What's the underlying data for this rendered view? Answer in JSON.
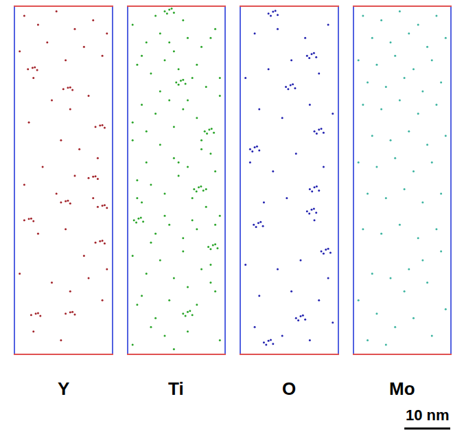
{
  "chart_data": [
    {
      "type": "scatter",
      "title": "Y",
      "color": "#a3242b",
      "xlim": [
        0,
        21
      ],
      "ylim": [
        0,
        78
      ],
      "tick_labels": false,
      "x": [
        2,
        5,
        9,
        13,
        17,
        20,
        1,
        7,
        11,
        15,
        19,
        4,
        8,
        12,
        16,
        3,
        10,
        14,
        18,
        6,
        2,
        9,
        13,
        17,
        5,
        11,
        15,
        20,
        1,
        8,
        12,
        16,
        19,
        4,
        10,
        2.8,
        3.8,
        4.8,
        4.3,
        10.5,
        11.5,
        12.5,
        12,
        17.5,
        18.5,
        19.5,
        19,
        16,
        17,
        18,
        17.5,
        2,
        3,
        4,
        3.5,
        18,
        19,
        20,
        19.5,
        17.5,
        18.5,
        19.5,
        19,
        10,
        11,
        12,
        11.5,
        3.5,
        4.5,
        5.5,
        5,
        11,
        12,
        13,
        12.5
      ],
      "y": [
        76,
        74,
        77,
        73,
        75,
        72,
        68,
        70,
        66,
        69,
        67,
        62,
        57,
        55,
        58,
        52,
        48,
        46,
        44,
        42,
        38,
        36,
        40,
        35,
        27,
        28,
        22,
        19,
        18,
        16,
        14,
        17,
        12,
        5,
        3,
        64,
        64.3,
        63.8,
        64.4,
        59.5,
        59.8,
        59.3,
        59.9,
        51,
        51.3,
        50.8,
        51.4,
        39.5,
        39.8,
        39.3,
        39.9,
        30,
        30.3,
        29.8,
        30.4,
        33,
        33.3,
        32.8,
        33.4,
        25,
        25.3,
        24.8,
        25.4,
        34,
        34.3,
        33.8,
        34.4,
        8.7,
        9,
        8.5,
        9.1,
        9,
        9.3,
        8.8,
        9.4
      ]
    },
    {
      "type": "scatter",
      "title": "Ti",
      "color": "#2aa52a",
      "xlim": [
        0,
        21
      ],
      "ylim": [
        0,
        78
      ],
      "tick_labels": false,
      "x": [
        1,
        4,
        7,
        10,
        13,
        16,
        19,
        2,
        5,
        8,
        11,
        14,
        17,
        20,
        3,
        6,
        9,
        12,
        15,
        18,
        1,
        4,
        7,
        10,
        13,
        16,
        19,
        2,
        5,
        8,
        11,
        14,
        17,
        20,
        3,
        6,
        9,
        12,
        15,
        18,
        1,
        4,
        7,
        10,
        13,
        16,
        19,
        2,
        5,
        8,
        6,
        12,
        18,
        3,
        9,
        15,
        20,
        7,
        13,
        1,
        10,
        16,
        4,
        11,
        17,
        2,
        8,
        14,
        19,
        5,
        12,
        18,
        3,
        9,
        15,
        6,
        13,
        20,
        1,
        10,
        10.5,
        11.5,
        12.5,
        11,
        12,
        16.7,
        17.7,
        18.7,
        17.2,
        18.2,
        14.4,
        15.4,
        16.4,
        14.9,
        15.9,
        1.3,
        2.3,
        3.3,
        1.8,
        2.8,
        17.5,
        18.5,
        19.5,
        18,
        19,
        12,
        13,
        14,
        12.5,
        13.5,
        8,
        9,
        10,
        8.5,
        9.5
      ],
      "y": [
        74,
        70,
        72,
        68,
        71,
        69,
        73,
        65,
        63,
        66,
        64,
        62,
        60,
        58,
        56,
        54,
        57,
        55,
        53,
        45,
        48,
        50,
        47,
        44,
        42,
        46,
        41,
        39,
        38,
        36,
        40,
        35,
        33,
        31,
        34,
        27,
        29,
        26,
        28,
        20,
        22,
        18,
        21,
        17,
        15,
        19,
        14,
        11,
        6,
        4,
        76,
        75,
        71,
        67,
        70,
        65,
        62,
        59,
        57,
        52,
        51,
        48,
        43,
        43,
        37,
        35,
        31,
        30,
        29,
        25,
        23,
        16,
        13,
        12,
        11,
        8,
        5,
        3,
        2,
        1,
        61,
        61.4,
        60.7,
        60.5,
        61.6,
        50,
        50.4,
        49.7,
        49.5,
        50.6,
        37,
        37.4,
        36.7,
        36.5,
        37.6,
        30,
        30.4,
        29.7,
        29.5,
        30.6,
        24,
        24.4,
        23.7,
        23.5,
        24.6,
        9,
        9.4,
        8.7,
        8.5,
        9.6,
        77,
        77.4,
        76.7,
        76.5,
        77.6
      ]
    },
    {
      "type": "scatter",
      "title": "O",
      "color": "#2323b0",
      "xlim": [
        0,
        21
      ],
      "ylim": [
        0,
        78
      ],
      "tick_labels": false,
      "x": [
        3,
        8,
        14,
        19,
        1,
        6,
        11,
        17,
        4,
        9,
        15,
        20,
        2,
        7,
        12,
        18,
        5,
        10,
        16,
        1,
        8,
        13,
        19,
        4,
        11,
        17,
        3,
        9,
        15,
        20,
        6,
        7,
        8,
        6.5,
        7.5,
        14.4,
        15.4,
        16.4,
        14.9,
        15.9,
        9.8,
        10.8,
        11.8,
        10.3,
        11.3,
        16,
        17,
        18,
        16.5,
        17.5,
        2,
        3,
        4,
        2.5,
        3.5,
        15,
        16,
        17,
        15.5,
        16.5,
        2.8,
        3.8,
        4.8,
        3.3,
        4.3,
        14.4,
        15.4,
        16.4,
        14.9,
        15.9,
        17.5,
        18.5,
        19.5,
        18,
        19,
        12,
        13,
        14,
        12.5,
        13.5,
        5,
        6,
        7,
        5.5,
        6.5
      ],
      "y": [
        72,
        73,
        71,
        74,
        62,
        64,
        66,
        63,
        55,
        53,
        56,
        54,
        43,
        41,
        45,
        42,
        34,
        35,
        30,
        20,
        19,
        21,
        17,
        13,
        14,
        12,
        6,
        4,
        3,
        7,
        76.5,
        76.9,
        76.2,
        76,
        77.1,
        67,
        67.4,
        66.7,
        66.5,
        67.6,
        60,
        60.4,
        59.7,
        59.5,
        60.6,
        50,
        50.4,
        49.7,
        49.5,
        50.6,
        46,
        46.4,
        45.7,
        45.5,
        46.6,
        37,
        37.4,
        36.7,
        36.5,
        37.6,
        29,
        29.4,
        28.7,
        28.5,
        29.6,
        32,
        32.4,
        31.7,
        31.5,
        32.6,
        23,
        23.4,
        22.7,
        22.5,
        23.6,
        8,
        8.4,
        7.7,
        7.5,
        8.6,
        2.5,
        2.9,
        2.2,
        2,
        3.1
      ]
    },
    {
      "type": "scatter",
      "title": "Mo",
      "color": "#3cb4a0",
      "xlim": [
        0,
        21
      ],
      "ylim": [
        0,
        78
      ],
      "tick_labels": false,
      "x": [
        2,
        6,
        10,
        14,
        18,
        4,
        8,
        12,
        16,
        20,
        1,
        5,
        9,
        13,
        17,
        3,
        7,
        11,
        15,
        19,
        2,
        6,
        10,
        14,
        18,
        4,
        8,
        12,
        16,
        20,
        1,
        5,
        9,
        13,
        17,
        3,
        7,
        11,
        15,
        19,
        2,
        6,
        10,
        14,
        18,
        4,
        8,
        12,
        16,
        20,
        1,
        5,
        9,
        13,
        17,
        3,
        7,
        11,
        15,
        19
      ],
      "y": [
        76,
        75,
        77,
        74,
        76,
        71,
        70,
        72,
        69,
        71,
        66,
        65,
        67,
        64,
        66,
        61,
        60,
        62,
        59,
        61,
        56,
        55,
        57,
        54,
        56,
        49,
        48,
        50,
        47,
        49,
        43,
        42,
        44,
        41,
        43,
        36,
        35,
        37,
        34,
        36,
        28,
        27,
        29,
        26,
        28,
        18,
        17,
        19,
        16,
        10,
        12,
        9,
        6,
        8,
        4,
        3,
        2,
        14,
        21,
        23
      ]
    }
  ],
  "scale_bar": {
    "label": "10 nm",
    "length": 10
  }
}
